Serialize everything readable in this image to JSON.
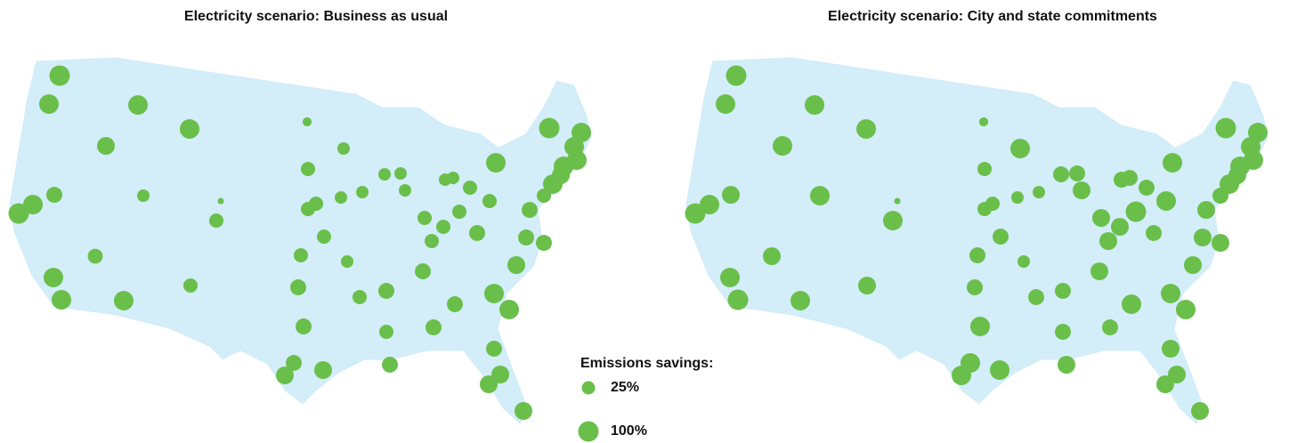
{
  "maps": [
    {
      "title": "Electricity scenario: Business as usual",
      "sites": [
        100,
        88,
        88,
        88,
        66,
        4,
        19,
        32,
        47,
        88,
        100,
        19,
        0,
        32,
        32,
        32,
        19,
        19,
        19,
        19,
        19,
        19,
        19,
        32,
        88,
        100,
        88,
        88,
        88,
        88,
        66,
        88,
        32,
        32,
        32,
        32,
        32,
        32,
        47,
        47,
        47,
        47,
        32,
        32,
        19,
        38,
        66,
        47,
        88,
        88,
        88,
        32,
        47,
        32,
        47,
        88,
        88,
        47,
        47,
        32,
        47,
        47,
        47,
        66,
        66,
        47,
        66,
        66,
        66
      ]
    },
    {
      "title": "Electricity scenario: City and state commitments",
      "sites": [
        100,
        88,
        88,
        88,
        88,
        4,
        88,
        32,
        66,
        88,
        100,
        88,
        0,
        88,
        32,
        32,
        19,
        19,
        47,
        47,
        66,
        47,
        47,
        47,
        88,
        100,
        88,
        88,
        88,
        88,
        66,
        88,
        47,
        88,
        100,
        66,
        66,
        66,
        47,
        66,
        66,
        66,
        47,
        47,
        19,
        66,
        66,
        66,
        88,
        100,
        88,
        66,
        47,
        47,
        47,
        88,
        88,
        88,
        88,
        47,
        47,
        66,
        88,
        88,
        88,
        66,
        66,
        66,
        66
      ]
    }
  ],
  "legend": {
    "title": "Emissions savings:",
    "items": [
      {
        "value": 25,
        "label": "25%"
      },
      {
        "value": 100,
        "label": "100%"
      }
    ]
  }
}
